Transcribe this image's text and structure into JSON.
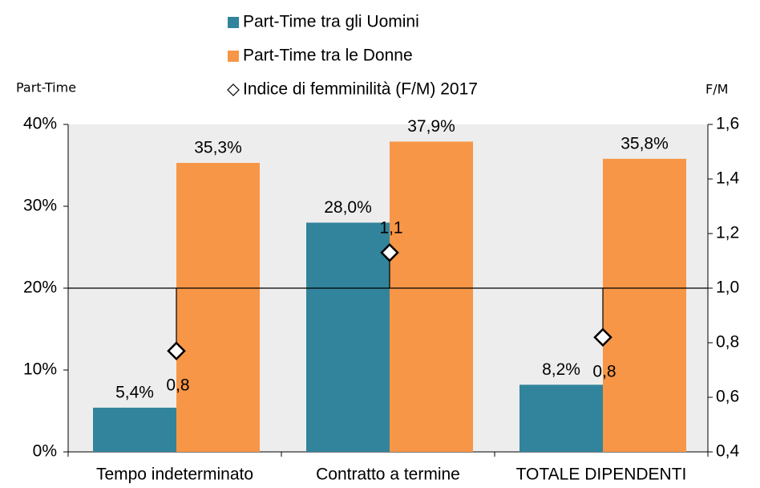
{
  "chart_data": {
    "type": "bar",
    "categories": [
      "Tempo indeterminato",
      "Contratto a termine",
      "TOTALE DIPENDENTI"
    ],
    "series": [
      {
        "name": "Part-Time tra gli Uomini",
        "color": "#31849b",
        "values": [
          5.4,
          28.0,
          8.2
        ],
        "value_labels": [
          "5,4%",
          "28,0%",
          "8,2%"
        ]
      },
      {
        "name": "Part-Time tra le Donne",
        "color": "#f79646",
        "values": [
          35.3,
          37.9,
          35.8
        ],
        "value_labels": [
          "35,3%",
          "37,9%",
          "35,8%"
        ]
      },
      {
        "name": "Indice di femminilità (F/M) 2017",
        "type": "scatter",
        "axis": "y2",
        "color": "#ffffff",
        "values": [
          0.77,
          1.13,
          0.82
        ],
        "value_labels": [
          "0,8",
          "1,1",
          "0,8"
        ]
      }
    ],
    "ylabel": "Part-Time",
    "y2label": "F/M",
    "ylim": [
      0,
      40
    ],
    "yticks": [
      {
        "value": 0,
        "label": "0%"
      },
      {
        "value": 10,
        "label": "10%"
      },
      {
        "value": 20,
        "label": "20%"
      },
      {
        "value": 30,
        "label": "30%"
      },
      {
        "value": 40,
        "label": "40%"
      }
    ],
    "y2lim": [
      0.4,
      1.6
    ],
    "y2ticks": [
      {
        "value": 0.4,
        "label": "0,4"
      },
      {
        "value": 0.6,
        "label": "0,6"
      },
      {
        "value": 0.8,
        "label": "0,8"
      },
      {
        "value": 1,
        "label": "1,0"
      },
      {
        "value": 1.2,
        "label": "1,2"
      },
      {
        "value": 1.4,
        "label": "1,4"
      },
      {
        "value": 1.6,
        "label": "1,6"
      }
    ],
    "y2_reference": 1,
    "legend": "top"
  }
}
